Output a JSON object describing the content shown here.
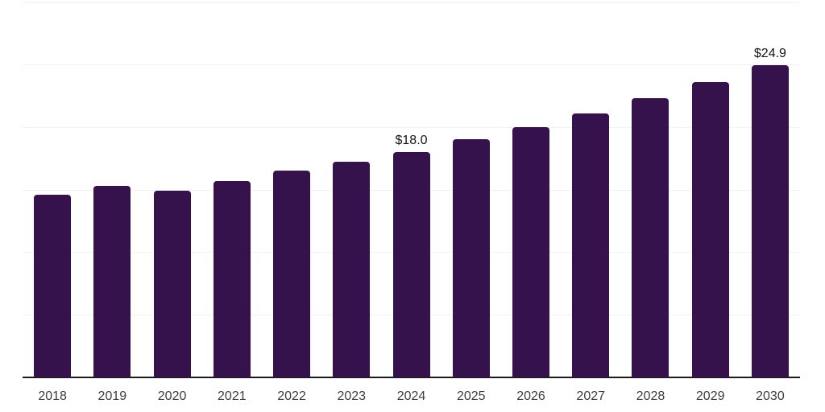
{
  "chart_data": {
    "type": "bar",
    "categories": [
      "2018",
      "2019",
      "2020",
      "2021",
      "2022",
      "2023",
      "2024",
      "2025",
      "2026",
      "2027",
      "2028",
      "2029",
      "2030"
    ],
    "values": [
      14.6,
      15.3,
      14.9,
      15.7,
      16.5,
      17.2,
      18.0,
      19.0,
      20.0,
      21.1,
      22.3,
      23.6,
      24.9
    ],
    "data_labels": [
      {
        "category": "2024",
        "text": "$18.0"
      },
      {
        "category": "2030",
        "text": "$24.9"
      }
    ],
    "title": "",
    "xlabel": "",
    "ylabel": "",
    "ylim": [
      0,
      30
    ],
    "gridline_step": 5,
    "grid": "horizontal",
    "legend": "none",
    "y_tick_labels_visible": false
  },
  "style": {
    "bar_color": "#36124D",
    "grid_color": "#F1F1F3",
    "axis_color": "#1C1C1C",
    "tick_label_color": "#3D3D3D",
    "value_label_color": "#141414",
    "background_color": "#FFFFFF"
  }
}
